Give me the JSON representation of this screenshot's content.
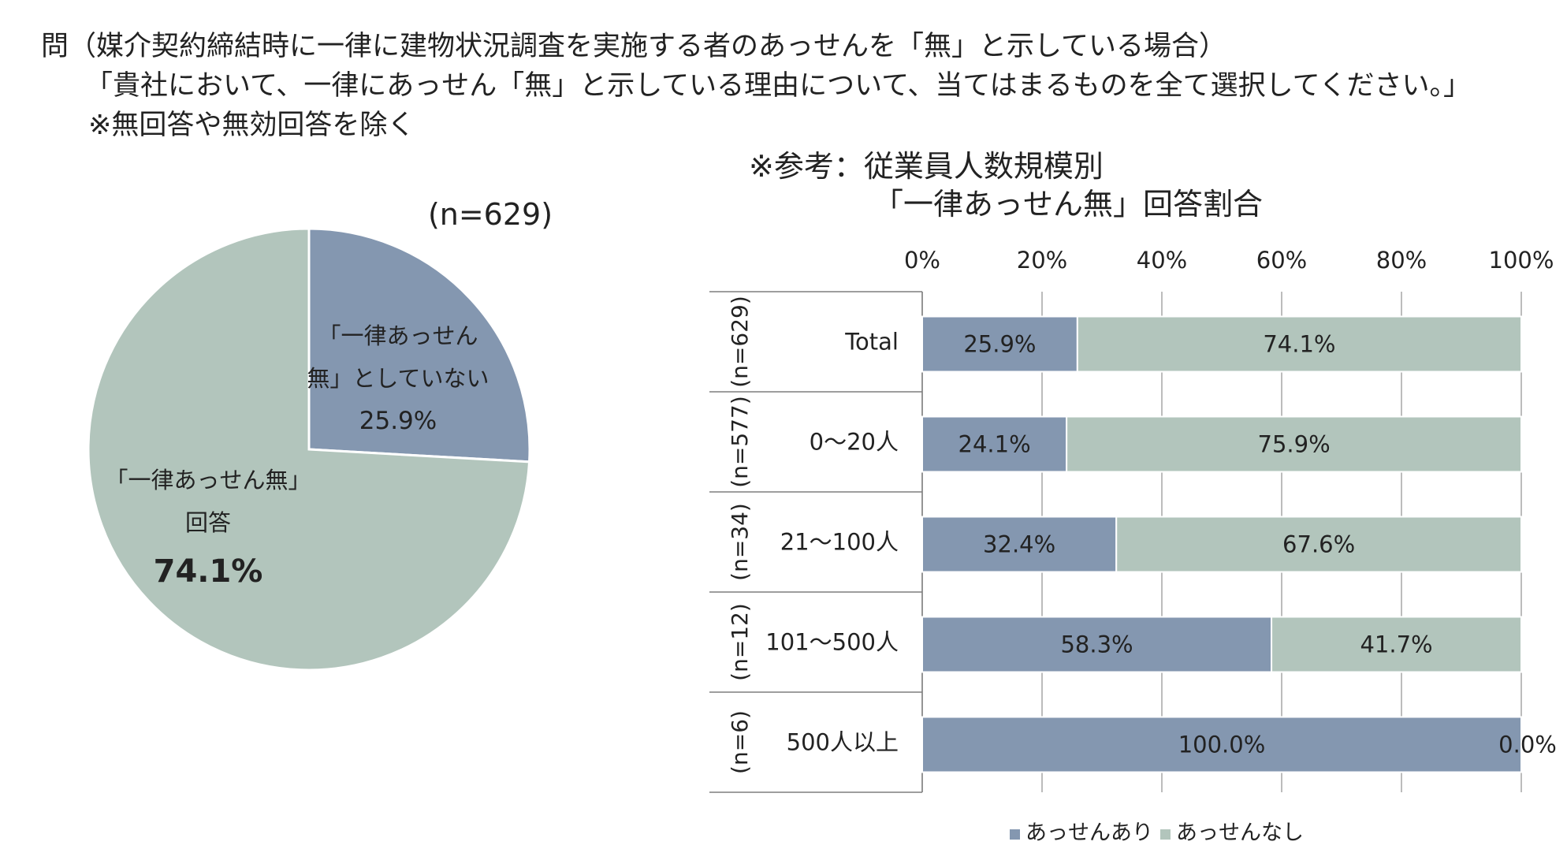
{
  "question": {
    "line1": "問（媒介契約締結時に一律に建物状況調査を実施する者のあっせんを「無」と示している場合）",
    "line2": "「貴社において、一律にあっせん「無」と示している理由について、当てはまるものを全て選択してください。」",
    "line3": "※無回答や無効回答を除く"
  },
  "reference_title": {
    "line1": "※参考：従業員人数規模別",
    "line2": "「一律あっせん無」回答割合"
  },
  "colors": {
    "ari": "#8497b0",
    "nashi": "#b2c5bc"
  },
  "chart_data": [
    {
      "type": "pie",
      "n_label": "(n=629)",
      "slices": [
        {
          "label_lines": [
            "「一律あっせん",
            "無」としていない"
          ],
          "value": 25.9,
          "value_label": "25.9%"
        },
        {
          "label_lines": [
            "「一律あっせん無」",
            "回答"
          ],
          "value": 74.1,
          "value_label": "74.1%"
        }
      ]
    },
    {
      "type": "bar",
      "orientation": "horizontal-stacked-100",
      "xlim": [
        0,
        100
      ],
      "xticks": [
        "0%",
        "20%",
        "40%",
        "60%",
        "80%",
        "100%"
      ],
      "rows": [
        {
          "n": "(n=629)",
          "label": "Total",
          "values": [
            25.9,
            74.1
          ],
          "value_labels": [
            "25.9%",
            "74.1%"
          ]
        },
        {
          "n": "(n=577)",
          "label": "0～20人",
          "values": [
            24.1,
            75.9
          ],
          "value_labels": [
            "24.1%",
            "75.9%"
          ]
        },
        {
          "n": "(n=34)",
          "label": "21～100人",
          "values": [
            32.4,
            67.6
          ],
          "value_labels": [
            "32.4%",
            "67.6%"
          ]
        },
        {
          "n": "(n=12)",
          "label": "101～500人",
          "values": [
            58.3,
            41.7
          ],
          "value_labels": [
            "58.3%",
            "41.7%"
          ]
        },
        {
          "n": "(n=6)",
          "label": "500人以上",
          "values": [
            100.0,
            0.0
          ],
          "value_labels": [
            "100.0%",
            "0.0%"
          ]
        }
      ],
      "series": [
        {
          "name": "あっせんあり"
        },
        {
          "name": "あっせんなし"
        }
      ]
    }
  ]
}
